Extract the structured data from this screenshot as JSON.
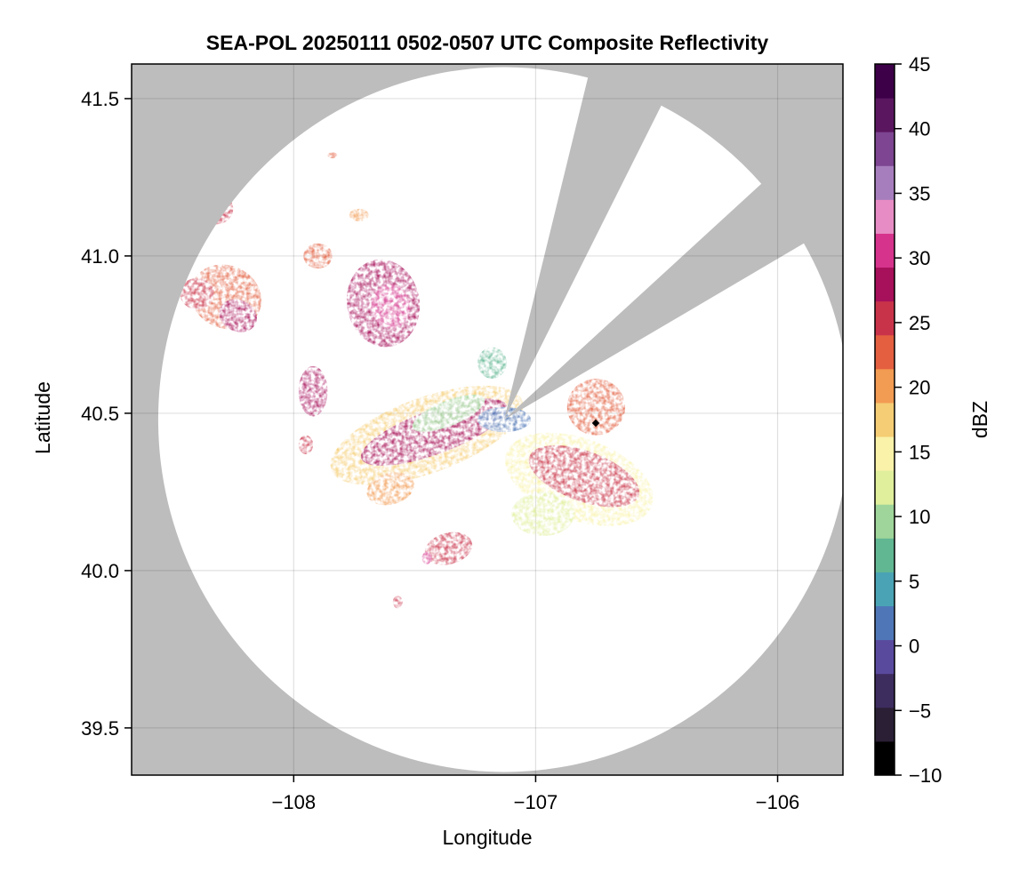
{
  "chart_data": {
    "type": "heatmap",
    "title": "SEA-POL 20250111 0502-0507 UTC Composite Reflectivity",
    "xlabel": "Longitude",
    "ylabel": "Latitude",
    "xlim": [
      -108.67,
      -105.73
    ],
    "ylim": [
      39.35,
      41.61
    ],
    "xticks": [
      -108,
      -107,
      -106
    ],
    "xtick_labels": [
      "−108",
      "−107",
      "−106"
    ],
    "yticks": [
      39.5,
      40.0,
      40.5,
      41.0,
      41.5
    ],
    "ytick_labels": [
      "39.5",
      "40.0",
      "40.5",
      "41.0",
      "41.5"
    ],
    "grid": true,
    "background_color": "#bdbdbd",
    "coverage_color": "#ffffff",
    "radar": {
      "center_lon": -107.13,
      "center_lat": 40.48,
      "range_lon_deg": 1.43,
      "range_lat_deg": 1.12,
      "blocked_sectors_deg_from_north": [
        [
          14,
          27
        ],
        [
          48,
          60
        ]
      ]
    },
    "colorbar": {
      "label": "dBZ",
      "min": -10,
      "max": 45,
      "ticks": [
        -10,
        -5,
        0,
        5,
        10,
        15,
        20,
        25,
        30,
        35,
        40,
        45
      ],
      "tick_labels": [
        "−10",
        "−5",
        "0",
        "5",
        "10",
        "15",
        "20",
        "25",
        "30",
        "35",
        "40",
        "45"
      ],
      "colors": [
        "#000000",
        "#2a1f35",
        "#3d2c5e",
        "#5a4a9e",
        "#4f77b8",
        "#4aa3b4",
        "#62b793",
        "#9fd59a",
        "#dfef9b",
        "#f9f2a8",
        "#f5cd74",
        "#f29b52",
        "#e35f3f",
        "#c9334a",
        "#a7105a",
        "#d6338c",
        "#e78cc4",
        "#a77ebd",
        "#7d4592",
        "#5b1660",
        "#3d0048"
      ]
    },
    "echo_regions": [
      {
        "lon": -107.45,
        "lat": 40.43,
        "rx": 0.42,
        "ry": 0.12,
        "rot": -20,
        "dbz": 18
      },
      {
        "lon": -107.42,
        "lat": 40.44,
        "rx": 0.32,
        "ry": 0.07,
        "rot": -20,
        "dbz": 28
      },
      {
        "lon": -107.36,
        "lat": 40.5,
        "rx": 0.16,
        "ry": 0.04,
        "rot": -22,
        "dbz": 10
      },
      {
        "lon": -107.13,
        "lat": 40.48,
        "rx": 0.11,
        "ry": 0.04,
        "rot": 0,
        "dbz": 1
      },
      {
        "lon": -106.82,
        "lat": 40.29,
        "rx": 0.32,
        "ry": 0.13,
        "rot": 20,
        "dbz": 14
      },
      {
        "lon": -106.8,
        "lat": 40.3,
        "rx": 0.24,
        "ry": 0.08,
        "rot": 20,
        "dbz": 26
      },
      {
        "lon": -106.97,
        "lat": 40.18,
        "rx": 0.13,
        "ry": 0.07,
        "rot": 0,
        "dbz": 12
      },
      {
        "lon": -106.75,
        "lat": 40.52,
        "rx": 0.12,
        "ry": 0.09,
        "rot": 0,
        "dbz": 22
      },
      {
        "lon": -107.63,
        "lat": 40.85,
        "rx": 0.15,
        "ry": 0.14,
        "rot": -10,
        "dbz": 27
      },
      {
        "lon": -107.6,
        "lat": 40.84,
        "rx": 0.08,
        "ry": 0.07,
        "rot": -10,
        "dbz": 31
      },
      {
        "lon": -107.92,
        "lat": 40.57,
        "rx": 0.06,
        "ry": 0.08,
        "rot": 0,
        "dbz": 29
      },
      {
        "lon": -108.28,
        "lat": 40.87,
        "rx": 0.15,
        "ry": 0.1,
        "rot": 25,
        "dbz": 23
      },
      {
        "lon": -108.23,
        "lat": 40.81,
        "rx": 0.08,
        "ry": 0.05,
        "rot": 25,
        "dbz": 27
      },
      {
        "lon": -108.32,
        "lat": 41.15,
        "rx": 0.07,
        "ry": 0.05,
        "rot": 0,
        "dbz": 26
      },
      {
        "lon": -108.4,
        "lat": 40.88,
        "rx": 0.07,
        "ry": 0.05,
        "rot": 0,
        "dbz": 26
      },
      {
        "lon": -107.9,
        "lat": 41.0,
        "rx": 0.06,
        "ry": 0.04,
        "rot": 0,
        "dbz": 24
      },
      {
        "lon": -107.36,
        "lat": 40.07,
        "rx": 0.1,
        "ry": 0.05,
        "rot": -15,
        "dbz": 25
      },
      {
        "lon": -107.45,
        "lat": 40.04,
        "rx": 0.02,
        "ry": 0.02,
        "rot": 0,
        "dbz": 31
      },
      {
        "lon": -107.57,
        "lat": 39.9,
        "rx": 0.02,
        "ry": 0.02,
        "rot": 0,
        "dbz": 26
      },
      {
        "lon": -107.6,
        "lat": 40.26,
        "rx": 0.1,
        "ry": 0.05,
        "rot": -15,
        "dbz": 19
      },
      {
        "lon": -107.73,
        "lat": 41.13,
        "rx": 0.04,
        "ry": 0.02,
        "rot": 0,
        "dbz": 20
      },
      {
        "lon": -107.84,
        "lat": 41.32,
        "rx": 0.02,
        "ry": 0.01,
        "rot": 0,
        "dbz": 24
      },
      {
        "lon": -107.18,
        "lat": 40.66,
        "rx": 0.06,
        "ry": 0.05,
        "rot": 0,
        "dbz": 8
      },
      {
        "lon": -107.95,
        "lat": 40.4,
        "rx": 0.03,
        "ry": 0.03,
        "rot": 0,
        "dbz": 26
      }
    ]
  }
}
